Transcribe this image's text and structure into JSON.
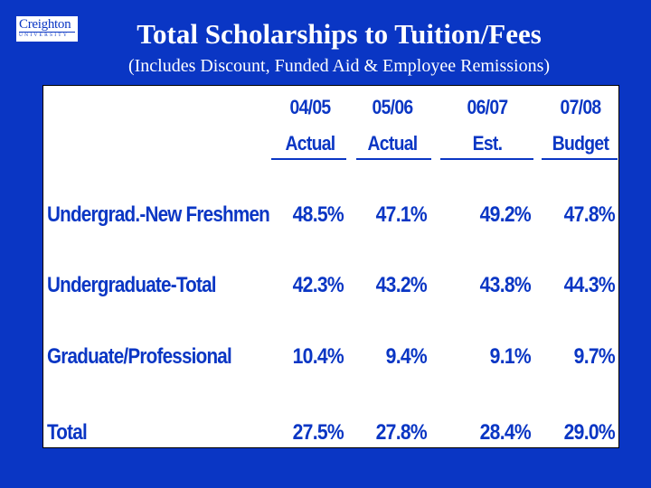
{
  "logo": {
    "wordmark": "Creighton",
    "subline": "UNIVERSITY"
  },
  "title": "Total Scholarships to Tuition/Fees",
  "subtitle": "(Includes Discount, Funded Aid & Employee Remissions)",
  "table": {
    "columns": [
      {
        "top": "04/05",
        "bottom": "Actual"
      },
      {
        "top": "05/06",
        "bottom": "Actual"
      },
      {
        "top": "06/07",
        "bottom": "Est."
      },
      {
        "top": "07/08",
        "bottom": "Budget"
      }
    ],
    "rows": [
      {
        "label": "Undergrad.-New Freshmen",
        "values": [
          "48.5%",
          "47.1%",
          "49.2%",
          "47.8%"
        ]
      },
      {
        "label": "Undergraduate-Total",
        "values": [
          "42.3%",
          "43.2%",
          "43.8%",
          "44.3%"
        ]
      },
      {
        "label": "Graduate/Professional",
        "values": [
          "10.4%",
          "9.4%",
          "9.1%",
          "9.7%"
        ]
      },
      {
        "label": "Total",
        "values": [
          "27.5%",
          "27.8%",
          "28.4%",
          "29.0%"
        ]
      }
    ]
  },
  "colors": {
    "background": "#0a36c4",
    "panel": "#ffffff",
    "text": "#0a36c4"
  }
}
